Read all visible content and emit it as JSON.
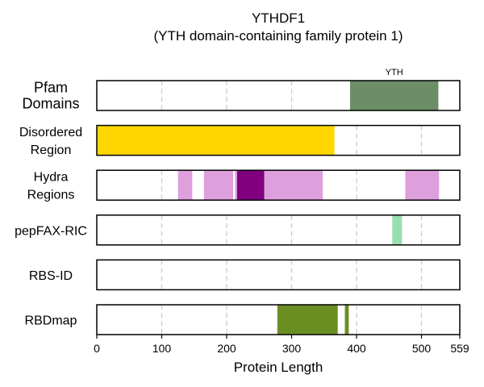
{
  "chart_data": {
    "type": "bar",
    "title": "YTHDF1",
    "subtitle": "(YTH domain-containing family protein 1)",
    "xlabel": "Protein Length",
    "xlim": [
      0,
      559
    ],
    "xticks": [
      0,
      100,
      200,
      300,
      400,
      500,
      559
    ],
    "grid": true,
    "tracks": [
      {
        "name": [
          "Pfam",
          "Domains"
        ],
        "segments": [
          {
            "start": 390,
            "end": 526,
            "color": "#6b8e66",
            "label": "YTH"
          }
        ]
      },
      {
        "name": [
          "Disordered",
          "Region"
        ],
        "segments": [
          {
            "start": 0,
            "end": 366,
            "color": "#ffd700"
          }
        ]
      },
      {
        "name": [
          "Hydra",
          "Regions"
        ],
        "segments": [
          {
            "start": 125,
            "end": 147,
            "color": "#dda0dd"
          },
          {
            "start": 165,
            "end": 210,
            "color": "#dda0dd"
          },
          {
            "start": 213,
            "end": 216,
            "color": "#dda0dd"
          },
          {
            "start": 216,
            "end": 258,
            "color": "#800080"
          },
          {
            "start": 258,
            "end": 348,
            "color": "#dda0dd"
          },
          {
            "start": 475,
            "end": 527,
            "color": "#dda0dd"
          }
        ]
      },
      {
        "name": [
          "pepFAX-RIC"
        ],
        "segments": [
          {
            "start": 455,
            "end": 470,
            "color": "#98dfb0"
          }
        ]
      },
      {
        "name": [
          "RBS-ID"
        ],
        "segments": []
      },
      {
        "name": [
          "RBDmap"
        ],
        "segments": [
          {
            "start": 278,
            "end": 371,
            "color": "#6b8e23"
          },
          {
            "start": 382,
            "end": 388,
            "color": "#6b8e23"
          }
        ]
      }
    ]
  }
}
